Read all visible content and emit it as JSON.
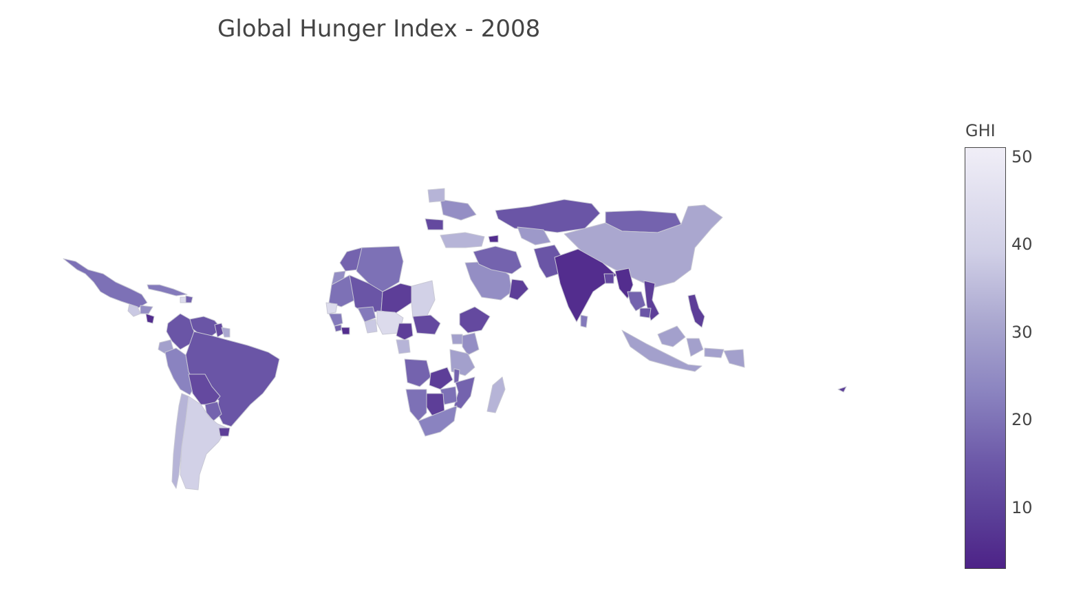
{
  "chart_data": {
    "type": "choropleth",
    "title": "Global Hunger Index - 2008",
    "colorbar": {
      "title": "GHI",
      "ticks": [
        "50",
        "40",
        "30",
        "20",
        "10"
      ],
      "tick_values": [
        50,
        40,
        30,
        20,
        10
      ],
      "range": [
        3,
        51
      ],
      "colorscale": [
        "#f0eef7",
        "#d0cfe6",
        "#a9a6cf",
        "#8b84c0",
        "#6c58a8",
        "#4d2287"
      ]
    },
    "regions": [
      {
        "name": "Mexico",
        "value": 18
      },
      {
        "name": "Guatemala",
        "value": 40
      },
      {
        "name": "Honduras",
        "value": 25
      },
      {
        "name": "Nicaragua",
        "value": 5
      },
      {
        "name": "Cuba",
        "value": 20
      },
      {
        "name": "Haiti",
        "value": 45
      },
      {
        "name": "Dominican Republic",
        "value": 15
      },
      {
        "name": "Colombia",
        "value": 12
      },
      {
        "name": "Venezuela",
        "value": 12
      },
      {
        "name": "Guyana",
        "value": 10
      },
      {
        "name": "Suriname",
        "value": 32
      },
      {
        "name": "Ecuador",
        "value": 30
      },
      {
        "name": "Peru",
        "value": 22
      },
      {
        "name": "Brazil",
        "value": 12
      },
      {
        "name": "Bolivia",
        "value": 10
      },
      {
        "name": "Paraguay",
        "value": 15
      },
      {
        "name": "Chile",
        "value": 35
      },
      {
        "name": "Argentina",
        "value": 42
      },
      {
        "name": "Uruguay",
        "value": 8
      },
      {
        "name": "Morocco",
        "value": 15
      },
      {
        "name": "Algeria",
        "value": 18
      },
      {
        "name": "Western Sahara",
        "value": 25
      },
      {
        "name": "Mauritania",
        "value": 18
      },
      {
        "name": "Mali",
        "value": 12
      },
      {
        "name": "Niger",
        "value": 8
      },
      {
        "name": "Chad",
        "value": 42
      },
      {
        "name": "Senegal",
        "value": 45
      },
      {
        "name": "Guinea",
        "value": 20
      },
      {
        "name": "Sierra Leone",
        "value": 15
      },
      {
        "name": "Liberia",
        "value": 5
      },
      {
        "name": "Burkina Faso",
        "value": 20
      },
      {
        "name": "Ghana",
        "value": 40
      },
      {
        "name": "Nigeria",
        "value": 45
      },
      {
        "name": "Cameroon",
        "value": 8
      },
      {
        "name": "Central African Republic",
        "value": 10
      },
      {
        "name": "Ethiopia",
        "value": 10
      },
      {
        "name": "Uganda",
        "value": 30
      },
      {
        "name": "Kenya",
        "value": 25
      },
      {
        "name": "Tanzania",
        "value": 30
      },
      {
        "name": "Gabon",
        "value": 35
      },
      {
        "name": "Angola",
        "value": 15
      },
      {
        "name": "Zambia",
        "value": 8
      },
      {
        "name": "Malawi",
        "value": 15
      },
      {
        "name": "Mozambique",
        "value": 15
      },
      {
        "name": "Zimbabwe",
        "value": 18
      },
      {
        "name": "Namibia",
        "value": 18
      },
      {
        "name": "Botswana",
        "value": 8
      },
      {
        "name": "South Africa",
        "value": 22
      },
      {
        "name": "Madagascar",
        "value": 35
      },
      {
        "name": "Turkey",
        "value": 35
      },
      {
        "name": "Saudi Arabia",
        "value": 25
      },
      {
        "name": "Oman",
        "value": 8
      },
      {
        "name": "Iran",
        "value": 15
      },
      {
        "name": "Armenia",
        "value": 5
      },
      {
        "name": "Kazakhstan",
        "value": 12
      },
      {
        "name": "Uzbekistan",
        "value": 28
      },
      {
        "name": "Mongolia",
        "value": 15
      },
      {
        "name": "China",
        "value": 32
      },
      {
        "name": "Pakistan",
        "value": 12
      },
      {
        "name": "India",
        "value": 5
      },
      {
        "name": "Bangladesh",
        "value": 10
      },
      {
        "name": "Myanmar",
        "value": 5
      },
      {
        "name": "Thailand",
        "value": 15
      },
      {
        "name": "Vietnam",
        "value": 8
      },
      {
        "name": "Cambodia",
        "value": 12
      },
      {
        "name": "Sri Lanka",
        "value": 20
      },
      {
        "name": "Philippines",
        "value": 8
      },
      {
        "name": "Indonesia",
        "value": 30
      },
      {
        "name": "Papua New Guinea",
        "value": 30
      },
      {
        "name": "Ukraine",
        "value": 25
      },
      {
        "name": "Belarus",
        "value": 35
      },
      {
        "name": "Romania",
        "value": 10
      },
      {
        "name": "Fiji",
        "value": 8
      }
    ]
  }
}
